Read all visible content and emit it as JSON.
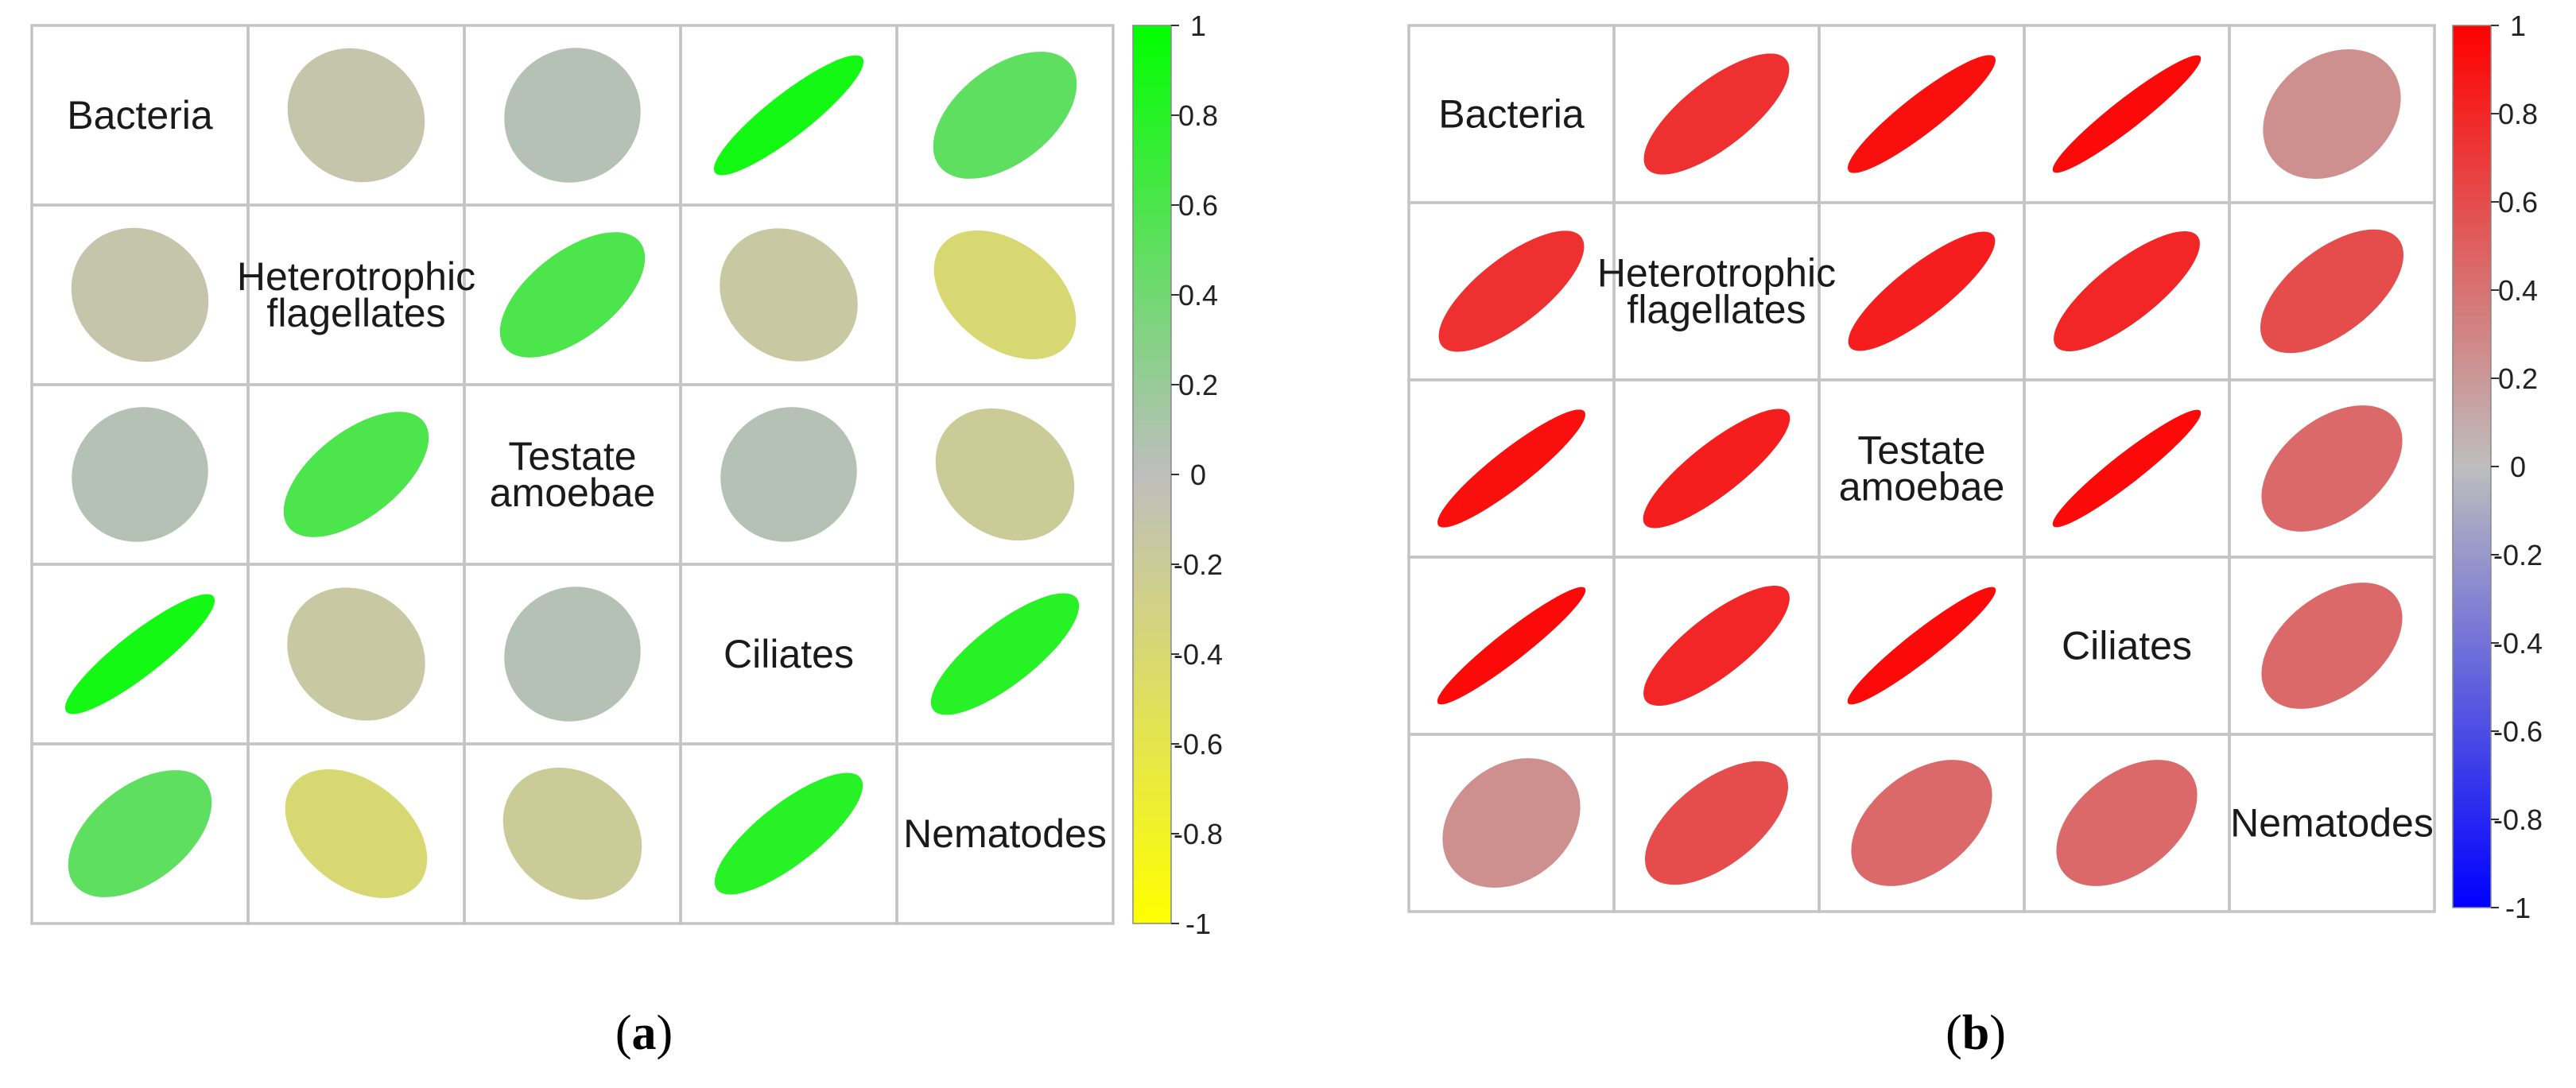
{
  "chart_data": [
    {
      "type": "heatmap",
      "panel_label": "a",
      "variables": [
        "Bacteria",
        "Heterotrophic flagellates",
        "Testate amoebae",
        "Ciliates",
        "Nematodes"
      ],
      "variable_lines": [
        [
          "Bacteria"
        ],
        [
          "Heterotrophic",
          "flagellates"
        ],
        [
          "Testate",
          "amoebae"
        ],
        [
          "Ciliates"
        ],
        [
          "Nematodes"
        ]
      ],
      "matrix": [
        [
          1.0,
          -0.1,
          0.05,
          0.9,
          0.5
        ],
        [
          -0.1,
          1.0,
          0.6,
          -0.15,
          -0.4
        ],
        [
          0.05,
          0.6,
          1.0,
          0.05,
          -0.2
        ],
        [
          0.9,
          -0.15,
          0.05,
          1.0,
          0.8
        ],
        [
          0.5,
          -0.4,
          -0.2,
          0.8,
          1.0
        ]
      ],
      "colorbar": {
        "ticks": [
          "1",
          "0.8",
          "0.6",
          "0.4",
          "0.2",
          "0",
          "-0.2",
          "-0.4",
          "-0.6",
          "-0.8",
          "-1"
        ],
        "range": [
          -1,
          1
        ],
        "low_color": "#ffff00",
        "mid_color": "#bebebe",
        "high_color": "#00ff00"
      }
    },
    {
      "type": "heatmap",
      "panel_label": "b",
      "variables": [
        "Bacteria",
        "Heterotrophic flagellates",
        "Testate amoebae",
        "Ciliates",
        "Nematodes"
      ],
      "variable_lines": [
        [
          "Bacteria"
        ],
        [
          "Heterotrophic",
          "flagellates"
        ],
        [
          "Testate",
          "amoebae"
        ],
        [
          "Ciliates"
        ],
        [
          "Nematodes"
        ]
      ],
      "matrix": [
        [
          1.0,
          0.75,
          0.92,
          0.95,
          0.25
        ],
        [
          0.75,
          1.0,
          0.85,
          0.8,
          0.6
        ],
        [
          0.92,
          0.85,
          1.0,
          0.95,
          0.45
        ],
        [
          0.95,
          0.8,
          0.95,
          1.0,
          0.45
        ],
        [
          0.25,
          0.6,
          0.45,
          0.45,
          1.0
        ]
      ],
      "colorbar": {
        "ticks": [
          "1",
          "0.8",
          "0.6",
          "0.4",
          "0.2",
          "0",
          "-0.2",
          "-0.4",
          "-0.6",
          "-0.8",
          "-1"
        ],
        "range": [
          -1,
          1
        ],
        "low_color": "#0000ff",
        "mid_color": "#bebebe",
        "high_color": "#ff0000"
      }
    }
  ]
}
